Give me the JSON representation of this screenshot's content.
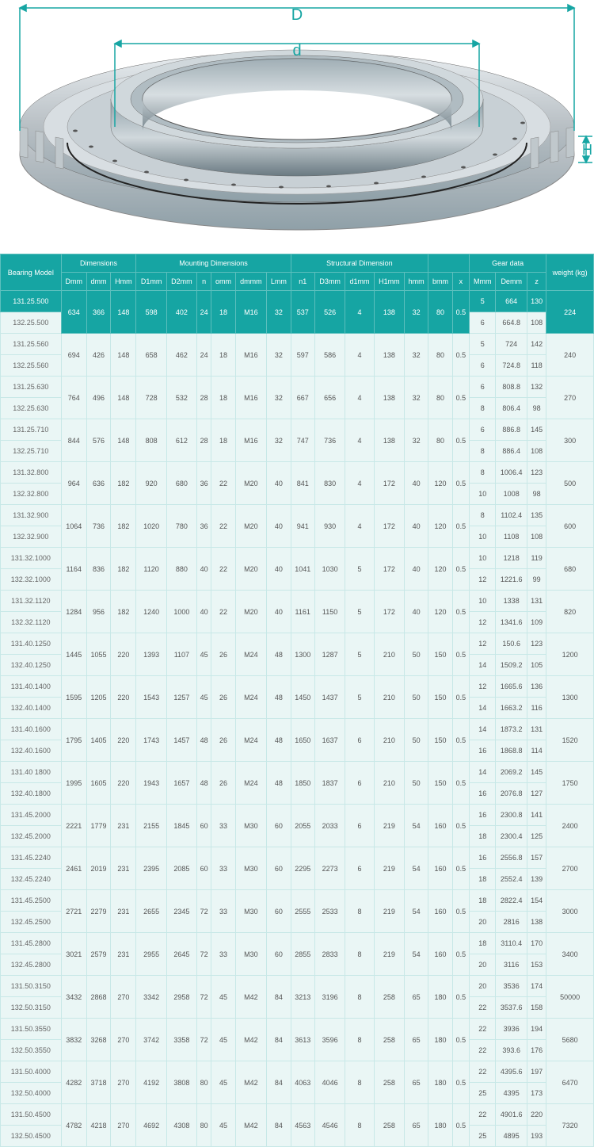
{
  "diagram": {
    "label_D": "D",
    "label_d": "d",
    "label_H": "H",
    "ring_outer_color": "#b8bfc4",
    "ring_inner_color": "#8fa0a8",
    "ring_highlight": "#e8edf0",
    "teal_accent": "#16a5a3"
  },
  "table": {
    "header_bg": "#16a5a3",
    "header_border": "#5cbfbd",
    "cell_bg": "#eaf6f5",
    "cell_border": "#c8e8e7",
    "text_color": "#555555",
    "groups": [
      {
        "label": "Bearing Model",
        "span": 1
      },
      {
        "label": "Dimensions",
        "span": 3
      },
      {
        "label": "Mounting Dimensions",
        "span": 6
      },
      {
        "label": "Structural Dimension",
        "span": 5
      },
      {
        "label": "",
        "span": 2
      },
      {
        "label": "Gear data",
        "span": 3
      },
      {
        "label": "weight (kg)",
        "span": 1
      }
    ],
    "cols": [
      "",
      "Dmm",
      "dmm",
      "Hmm",
      "D1mm",
      "D2mm",
      "n",
      "omm",
      "dmmm",
      "Lmm",
      "n1",
      "D3mm",
      "d1mm",
      "H1mm",
      "hmm",
      "bmm",
      "x",
      "Mmm",
      "Demm",
      "z",
      ""
    ],
    "rows": [
      {
        "models": [
          "131.25.500",
          "132.25.500"
        ],
        "shared": [
          "634",
          "366",
          "148",
          "598",
          "402",
          "24",
          "18",
          "M16",
          "32",
          "537",
          "526",
          "4",
          "138",
          "32",
          "80",
          "0.5"
        ],
        "gear": [
          [
            "5",
            "664",
            "130"
          ],
          [
            "6",
            "664.8",
            "108"
          ]
        ],
        "weight": "224",
        "firstRow": true
      },
      {
        "models": [
          "131.25.560",
          "132.25.560"
        ],
        "shared": [
          "694",
          "426",
          "148",
          "658",
          "462",
          "24",
          "18",
          "M16",
          "32",
          "597",
          "586",
          "4",
          "138",
          "32",
          "80",
          "0.5"
        ],
        "gear": [
          [
            "5",
            "724",
            "142"
          ],
          [
            "6",
            "724.8",
            "118"
          ]
        ],
        "weight": "240"
      },
      {
        "models": [
          "131.25.630",
          "132.25.630"
        ],
        "shared": [
          "764",
          "496",
          "148",
          "728",
          "532",
          "28",
          "18",
          "M16",
          "32",
          "667",
          "656",
          "4",
          "138",
          "32",
          "80",
          "0.5"
        ],
        "gear": [
          [
            "6",
            "808.8",
            "132"
          ],
          [
            "8",
            "806.4",
            "98"
          ]
        ],
        "weight": "270"
      },
      {
        "models": [
          "131.25.710",
          "132.25.710"
        ],
        "shared": [
          "844",
          "576",
          "148",
          "808",
          "612",
          "28",
          "18",
          "M16",
          "32",
          "747",
          "736",
          "4",
          "138",
          "32",
          "80",
          "0.5"
        ],
        "gear": [
          [
            "6",
            "886.8",
            "145"
          ],
          [
            "8",
            "886.4",
            "108"
          ]
        ],
        "weight": "300"
      },
      {
        "models": [
          "131.32.800",
          "132.32.800"
        ],
        "shared": [
          "964",
          "636",
          "182",
          "920",
          "680",
          "36",
          "22",
          "M20",
          "40",
          "841",
          "830",
          "4",
          "172",
          "40",
          "120",
          "0.5"
        ],
        "gear": [
          [
            "8",
            "1006.4",
            "123"
          ],
          [
            "10",
            "1008",
            "98"
          ]
        ],
        "weight": "500"
      },
      {
        "models": [
          "131.32.900",
          "132.32.900"
        ],
        "shared": [
          "1064",
          "736",
          "182",
          "1020",
          "780",
          "36",
          "22",
          "M20",
          "40",
          "941",
          "930",
          "4",
          "172",
          "40",
          "120",
          "0.5"
        ],
        "gear": [
          [
            "8",
            "1102.4",
            "135"
          ],
          [
            "10",
            "1108",
            "108"
          ]
        ],
        "weight": "600"
      },
      {
        "models": [
          "131.32.1000",
          "132.32.1000"
        ],
        "shared": [
          "1164",
          "836",
          "182",
          "1120",
          "880",
          "40",
          "22",
          "M20",
          "40",
          "1041",
          "1030",
          "5",
          "172",
          "40",
          "120",
          "0.5"
        ],
        "gear": [
          [
            "10",
            "1218",
            "119"
          ],
          [
            "12",
            "1221.6",
            "99"
          ]
        ],
        "weight": "680"
      },
      {
        "models": [
          "131.32.1120",
          "132.32.1120"
        ],
        "shared": [
          "1284",
          "956",
          "182",
          "1240",
          "1000",
          "40",
          "22",
          "M20",
          "40",
          "1161",
          "1150",
          "5",
          "172",
          "40",
          "120",
          "0.5"
        ],
        "gear": [
          [
            "10",
            "1338",
            "131"
          ],
          [
            "12",
            "1341.6",
            "109"
          ]
        ],
        "weight": "820"
      },
      {
        "models": [
          "131.40.1250",
          "132.40.1250"
        ],
        "shared": [
          "1445",
          "1055",
          "220",
          "1393",
          "1107",
          "45",
          "26",
          "M24",
          "48",
          "1300",
          "1287",
          "5",
          "210",
          "50",
          "150",
          "0.5"
        ],
        "gear": [
          [
            "12",
            "150.6",
            "123"
          ],
          [
            "14",
            "1509.2",
            "105"
          ]
        ],
        "weight": "1200"
      },
      {
        "models": [
          "131.40.1400",
          "132.40.1400"
        ],
        "shared": [
          "1595",
          "1205",
          "220",
          "1543",
          "1257",
          "45",
          "26",
          "M24",
          "48",
          "1450",
          "1437",
          "5",
          "210",
          "50",
          "150",
          "0.5"
        ],
        "gear": [
          [
            "12",
            "1665.6",
            "136"
          ],
          [
            "14",
            "1663.2",
            "116"
          ]
        ],
        "weight": "1300"
      },
      {
        "models": [
          "131.40.1600",
          "132.40.1600"
        ],
        "shared": [
          "1795",
          "1405",
          "220",
          "1743",
          "1457",
          "48",
          "26",
          "M24",
          "48",
          "1650",
          "1637",
          "6",
          "210",
          "50",
          "150",
          "0.5"
        ],
        "gear": [
          [
            "14",
            "1873.2",
            "131"
          ],
          [
            "16",
            "1868.8",
            "114"
          ]
        ],
        "weight": "1520"
      },
      {
        "models": [
          "131.40 1800",
          "132.40.1800"
        ],
        "shared": [
          "1995",
          "1605",
          "220",
          "1943",
          "1657",
          "48",
          "26",
          "M24",
          "48",
          "1850",
          "1837",
          "6",
          "210",
          "50",
          "150",
          "0.5"
        ],
        "gear": [
          [
            "14",
            "2069.2",
            "145"
          ],
          [
            "16",
            "2076.8",
            "127"
          ]
        ],
        "weight": "1750"
      },
      {
        "models": [
          "131.45.2000",
          "132.45.2000"
        ],
        "shared": [
          "2221",
          "1779",
          "231",
          "2155",
          "1845",
          "60",
          "33",
          "M30",
          "60",
          "2055",
          "2033",
          "6",
          "219",
          "54",
          "160",
          "0.5"
        ],
        "gear": [
          [
            "16",
            "2300.8",
            "141"
          ],
          [
            "18",
            "2300.4",
            "125"
          ]
        ],
        "weight": "2400"
      },
      {
        "models": [
          "131.45.2240",
          "132.45.2240"
        ],
        "shared": [
          "2461",
          "2019",
          "231",
          "2395",
          "2085",
          "60",
          "33",
          "M30",
          "60",
          "2295",
          "2273",
          "6",
          "219",
          "54",
          "160",
          "0.5"
        ],
        "gear": [
          [
            "16",
            "2556.8",
            "157"
          ],
          [
            "18",
            "2552.4",
            "139"
          ]
        ],
        "weight": "2700"
      },
      {
        "models": [
          "131.45.2500",
          "132.45.2500"
        ],
        "shared": [
          "2721",
          "2279",
          "231",
          "2655",
          "2345",
          "72",
          "33",
          "M30",
          "60",
          "2555",
          "2533",
          "8",
          "219",
          "54",
          "160",
          "0.5"
        ],
        "gear": [
          [
            "18",
            "2822.4",
            "154"
          ],
          [
            "20",
            "2816",
            "138"
          ]
        ],
        "weight": "3000"
      },
      {
        "models": [
          "131.45.2800",
          "132.45.2800"
        ],
        "shared": [
          "3021",
          "2579",
          "231",
          "2955",
          "2645",
          "72",
          "33",
          "M30",
          "60",
          "2855",
          "2833",
          "8",
          "219",
          "54",
          "160",
          "0.5"
        ],
        "gear": [
          [
            "18",
            "3110.4",
            "170"
          ],
          [
            "20",
            "3116",
            "153"
          ]
        ],
        "weight": "3400"
      },
      {
        "models": [
          "131.50.3150",
          "132.50.3150"
        ],
        "shared": [
          "3432",
          "2868",
          "270",
          "3342",
          "2958",
          "72",
          "45",
          "M42",
          "84",
          "3213",
          "3196",
          "8",
          "258",
          "65",
          "180",
          "0.5"
        ],
        "gear": [
          [
            "20",
            "3536",
            "174"
          ],
          [
            "22",
            "3537.6",
            "158"
          ]
        ],
        "weight": "50000"
      },
      {
        "models": [
          "131.50.3550",
          "132.50.3550"
        ],
        "shared": [
          "3832",
          "3268",
          "270",
          "3742",
          "3358",
          "72",
          "45",
          "M42",
          "84",
          "3613",
          "3596",
          "8",
          "258",
          "65",
          "180",
          "0.5"
        ],
        "gear": [
          [
            "22",
            "3936",
            "194"
          ],
          [
            "22",
            "393.6",
            "176"
          ]
        ],
        "weight": "5680"
      },
      {
        "models": [
          "131.50.4000",
          "132.50.4000"
        ],
        "shared": [
          "4282",
          "3718",
          "270",
          "4192",
          "3808",
          "80",
          "45",
          "M42",
          "84",
          "4063",
          "4046",
          "8",
          "258",
          "65",
          "180",
          "0.5"
        ],
        "gear": [
          [
            "22",
            "4395.6",
            "197"
          ],
          [
            "25",
            "4395",
            "173"
          ]
        ],
        "weight": "6470"
      },
      {
        "models": [
          "131.50.4500",
          "132.50.4500"
        ],
        "shared": [
          "4782",
          "4218",
          "270",
          "4692",
          "4308",
          "80",
          "45",
          "M42",
          "84",
          "4563",
          "4546",
          "8",
          "258",
          "65",
          "180",
          "0.5"
        ],
        "gear": [
          [
            "22",
            "4901.6",
            "220"
          ],
          [
            "25",
            "4895",
            "193"
          ]
        ],
        "weight": "7320"
      }
    ]
  }
}
